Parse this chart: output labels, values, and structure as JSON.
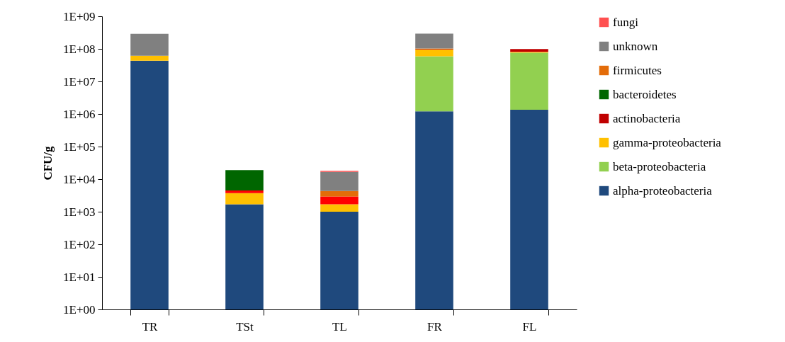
{
  "chart_data": {
    "type": "bar",
    "stacked": true,
    "log": "y",
    "ylabel": "CFU/g",
    "categories": [
      "TR",
      "TSt",
      "TL",
      "FR",
      "FL"
    ],
    "series": [
      {
        "name": "alpha-proteobacteria",
        "color": "#1f497d",
        "values": [
          43000000,
          1700,
          1000,
          1200000,
          1350000
        ]
      },
      {
        "name": "beta-proteobacteria",
        "color": "#92d050",
        "values": [
          null,
          null,
          null,
          58000000,
          75000000
        ]
      },
      {
        "name": "gamma-proteobacteria",
        "color": "#ffc000",
        "values": [
          18000000,
          2000,
          700,
          36000000,
          4000000
        ]
      },
      {
        "name": "actinobacteria",
        "color": "#c00000",
        "colors": [
          null,
          "#ff0000",
          "#ff0000",
          "#c00000",
          "#c00000"
        ],
        "values": [
          null,
          800,
          1200,
          3000000,
          18000000
        ]
      },
      {
        "name": "bacteroidetes",
        "color": "#006600",
        "values": [
          null,
          14500,
          null,
          null,
          null
        ]
      },
      {
        "name": "firmicutes",
        "color": "#e36c09",
        "values": [
          null,
          null,
          1400,
          4000000,
          null
        ]
      },
      {
        "name": "unknown",
        "color": "#808080",
        "values": [
          230000000,
          null,
          12400,
          190000000,
          null
        ]
      },
      {
        "name": "fungi",
        "color": "#ff5050",
        "values": [
          null,
          null,
          1300,
          null,
          null
        ]
      }
    ],
    "ylim": [
      1,
      1000000000
    ],
    "yticks": [
      {
        "value": 1,
        "label": "1E+00"
      },
      {
        "value": 10,
        "label": "1E+01"
      },
      {
        "value": 100,
        "label": "1E+02"
      },
      {
        "value": 1000,
        "label": "1E+03"
      },
      {
        "value": 10000,
        "label": "1E+04"
      },
      {
        "value": 100000,
        "label": "1E+05"
      },
      {
        "value": 1000000,
        "label": "1E+06"
      },
      {
        "value": 10000000,
        "label": "1E+07"
      },
      {
        "value": 100000000,
        "label": "1E+08"
      },
      {
        "value": 1000000000,
        "label": "1E+09"
      }
    ],
    "legend": "right",
    "grid": false
  }
}
